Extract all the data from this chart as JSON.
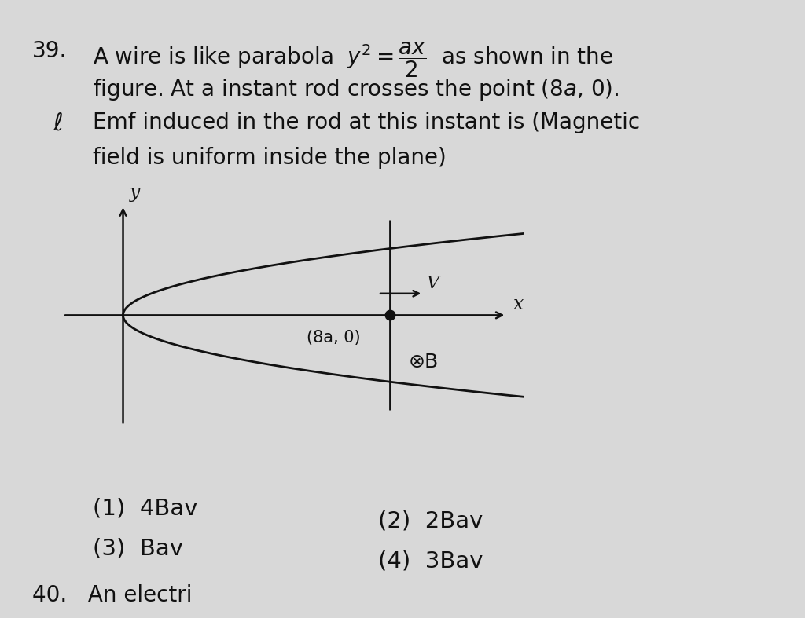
{
  "bg_color": "#d8d8d8",
  "text_color": "#111111",
  "q_number": "39.",
  "line1": "A wire is like parabola  $y^2=\\dfrac{ax}{2}$  as shown in the",
  "line2": "figure. At a instant rod crosses the point (8$a$, 0).",
  "line3": "Emf induced in the rod at this instant is (Magnetic",
  "line4": "field is uniform inside the plane)",
  "lambda_sym": "$\\lambda$",
  "opt1": "(1)  4Bav",
  "opt2": "(2)  2Bav",
  "opt3": "(3)  Bav",
  "opt4": "(4)  3Bav",
  "next_q": "40.   An electri",
  "label_x": "x",
  "label_y": "y",
  "label_v": "V",
  "label_B": "⊗B",
  "label_point": "(8a, 0)",
  "parabola_color": "#111111",
  "axis_color": "#111111",
  "rod_color": "#111111",
  "font_size_text": 20,
  "font_size_diagram": 16,
  "font_size_options": 21
}
